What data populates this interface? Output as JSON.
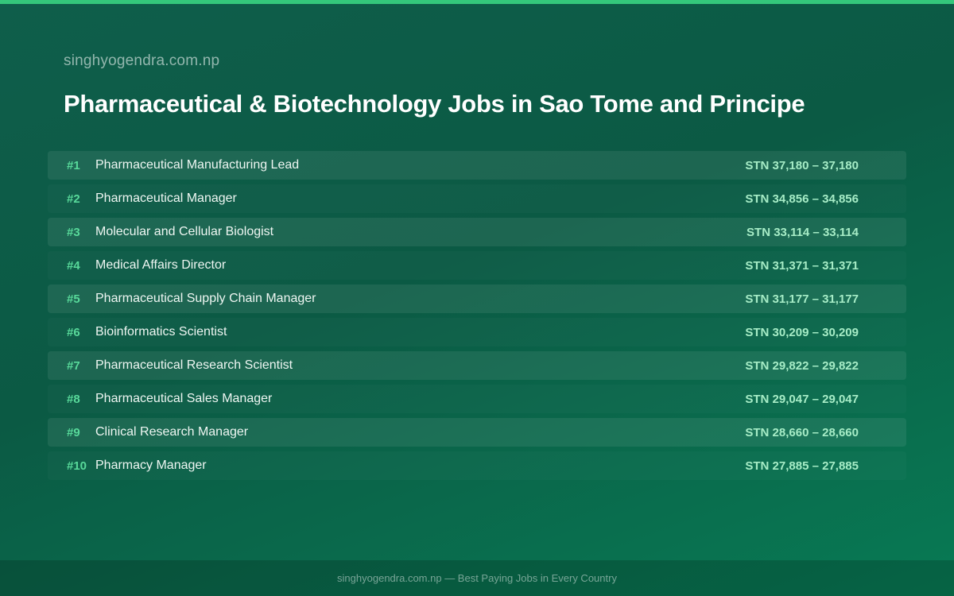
{
  "header": {
    "site_name": "singhyogendra.com.np",
    "title": "Pharmaceutical & Biotechnology Jobs in Sao Tome and Principe"
  },
  "jobs": [
    {
      "rank": "#1",
      "title": "Pharmaceutical Manufacturing Lead",
      "salary": "STN 37,180 – 37,180"
    },
    {
      "rank": "#2",
      "title": "Pharmaceutical Manager",
      "salary": "STN 34,856 – 34,856"
    },
    {
      "rank": "#3",
      "title": "Molecular and Cellular Biologist",
      "salary": "STN 33,114 – 33,114"
    },
    {
      "rank": "#4",
      "title": "Medical Affairs Director",
      "salary": "STN 31,371 – 31,371"
    },
    {
      "rank": "#5",
      "title": "Pharmaceutical Supply Chain Manager",
      "salary": "STN 31,177 – 31,177"
    },
    {
      "rank": "#6",
      "title": "Bioinformatics Scientist",
      "salary": "STN 30,209 – 30,209"
    },
    {
      "rank": "#7",
      "title": "Pharmaceutical Research Scientist",
      "salary": "STN 29,822 – 29,822"
    },
    {
      "rank": "#8",
      "title": "Pharmaceutical Sales Manager",
      "salary": "STN 29,047 – 29,047"
    },
    {
      "rank": "#9",
      "title": "Clinical Research Manager",
      "salary": "STN 28,660 – 28,660"
    },
    {
      "rank": "#10",
      "title": "Pharmacy Manager",
      "salary": "STN 27,885 – 27,885"
    }
  ],
  "footer": {
    "text": "singhyogendra.com.np — Best Paying Jobs in Every Country"
  },
  "colors": {
    "accent": "#34c77b",
    "rank": "#58d99a",
    "salary": "#a6ecc6",
    "background": "#0b5a44"
  }
}
